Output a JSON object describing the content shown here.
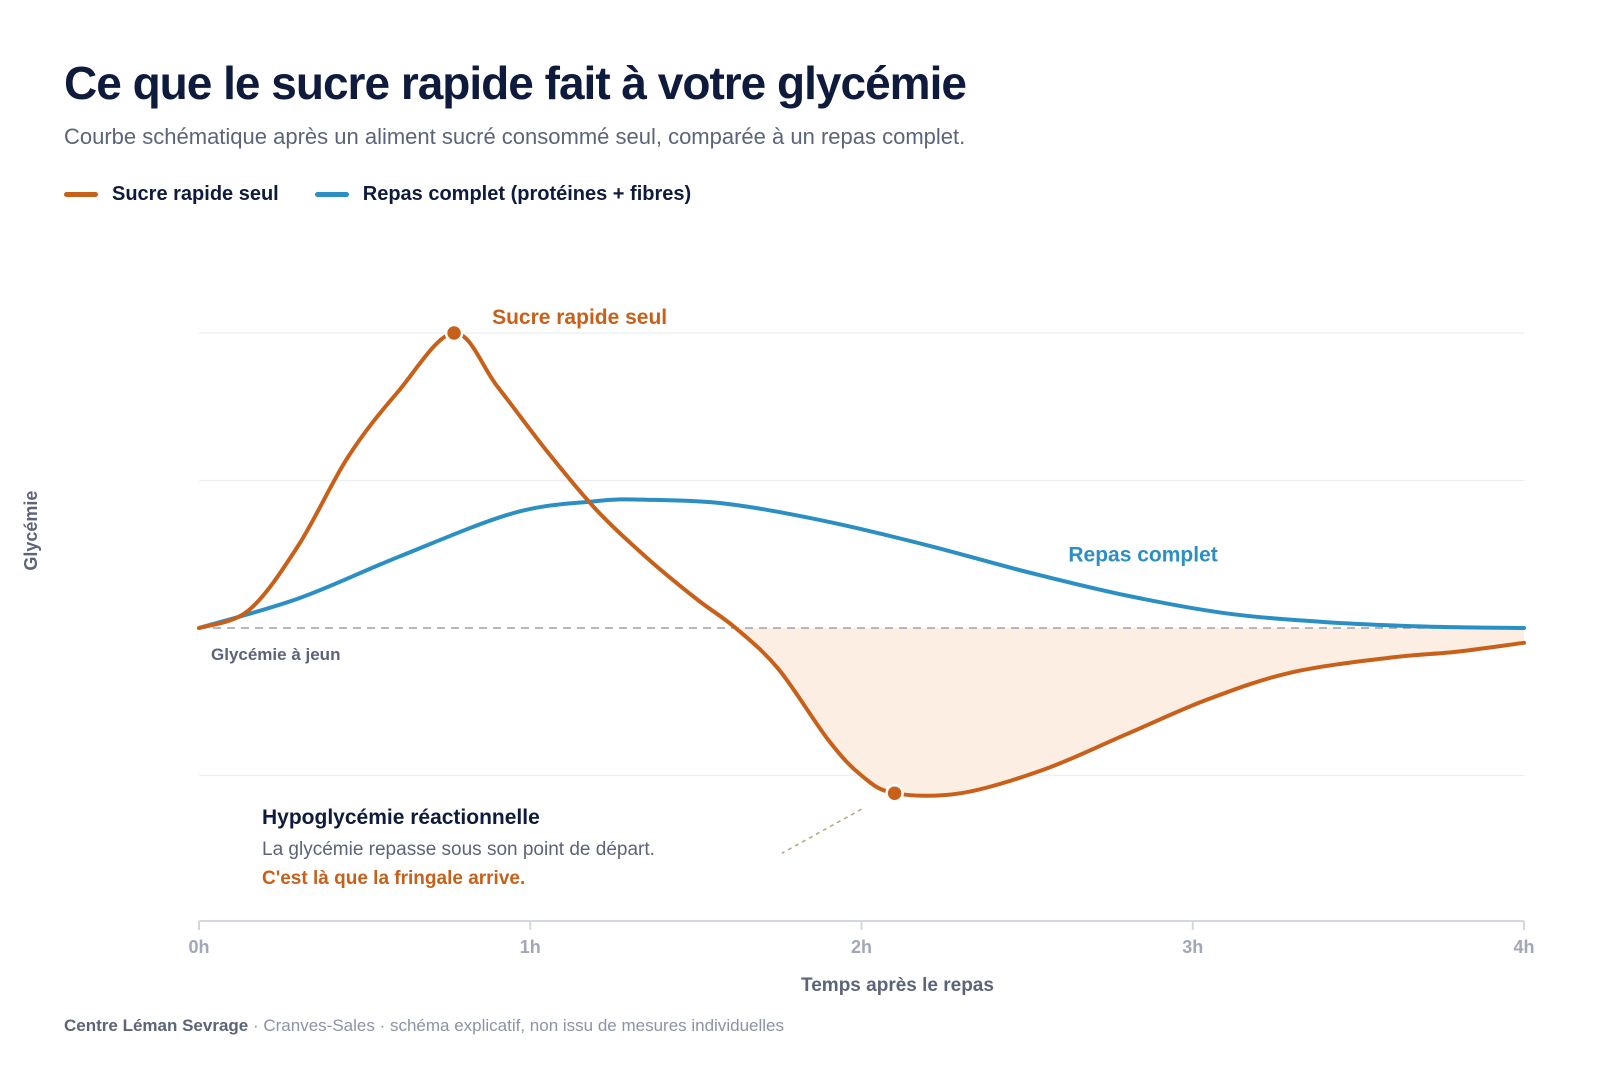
{
  "header": {
    "title": "Ce que le sucre rapide fait à votre glycémie",
    "subtitle": "Courbe schématique après un aliment sucré consommé seul, comparée à un repas complet."
  },
  "legend": [
    {
      "label": "Sucre rapide seul",
      "color": "#c8601a"
    },
    {
      "label": "Repas complet (protéines + fibres)",
      "color": "#2b8fc4"
    }
  ],
  "footer": {
    "org": "Centre Léman Sevrage",
    "rest": " · Cranves-Sales · schéma explicatif, non issu de mesures individuelles"
  },
  "chart_data": {
    "type": "line",
    "xlabel": "Temps après le repas",
    "ylabel": "Glycémie",
    "x_ticks": [
      "0h",
      "1h",
      "2h",
      "3h",
      "4h"
    ],
    "xlim": [
      0,
      4
    ],
    "ylim": [
      -1,
      1
    ],
    "grid": true,
    "baseline": {
      "y": 0,
      "label": "Glycémie à jeun"
    },
    "series": [
      {
        "name": "Sucre rapide seul",
        "color": "#c8601a",
        "points": [
          [
            0,
            0
          ],
          [
            0.15,
            0.06
          ],
          [
            0.3,
            0.28
          ],
          [
            0.45,
            0.58
          ],
          [
            0.6,
            0.8
          ],
          [
            0.77,
            1.0
          ],
          [
            0.9,
            0.82
          ],
          [
            1.05,
            0.6
          ],
          [
            1.2,
            0.4
          ],
          [
            1.35,
            0.24
          ],
          [
            1.5,
            0.1
          ],
          [
            1.62,
            0.0
          ],
          [
            1.75,
            -0.14
          ],
          [
            1.9,
            -0.38
          ],
          [
            2.0,
            -0.5
          ],
          [
            2.1,
            -0.56
          ],
          [
            2.3,
            -0.56
          ],
          [
            2.55,
            -0.48
          ],
          [
            2.8,
            -0.36
          ],
          [
            3.05,
            -0.24
          ],
          [
            3.3,
            -0.15
          ],
          [
            3.6,
            -0.1
          ],
          [
            3.8,
            -0.08
          ],
          [
            4.0,
            -0.05
          ]
        ],
        "peak": {
          "x": 0.77,
          "y": 1.0,
          "label": "Sucre rapide seul"
        },
        "trough": {
          "x": 2.1,
          "y": -0.56
        }
      },
      {
        "name": "Repas complet",
        "color": "#2b8fc4",
        "points": [
          [
            0,
            0
          ],
          [
            0.3,
            0.1
          ],
          [
            0.6,
            0.24
          ],
          [
            0.95,
            0.39
          ],
          [
            1.2,
            0.43
          ],
          [
            1.35,
            0.435
          ],
          [
            1.6,
            0.42
          ],
          [
            1.9,
            0.36
          ],
          [
            2.2,
            0.28
          ],
          [
            2.5,
            0.19
          ],
          [
            2.8,
            0.11
          ],
          [
            3.1,
            0.05
          ],
          [
            3.4,
            0.02
          ],
          [
            3.7,
            0.005
          ],
          [
            4.0,
            0
          ]
        ],
        "label": "Repas complet"
      }
    ],
    "annotation": {
      "title": "Hypoglycémie réactionnelle",
      "line1": "La glycémie repasse sous son point de départ.",
      "line2": "C'est là que la fringale arrive."
    }
  }
}
